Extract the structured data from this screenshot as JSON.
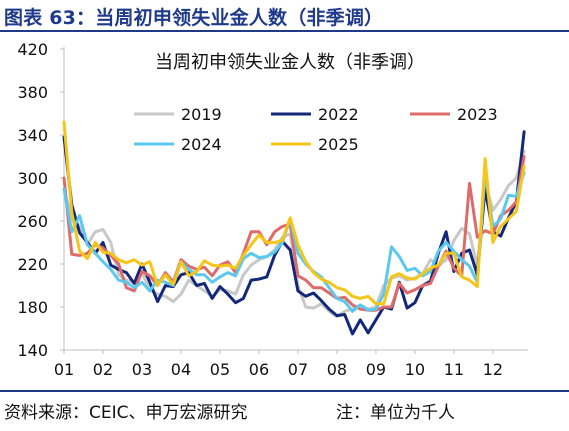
{
  "figure_title": "图表 63：当周初申领失业金人数（非季调）",
  "source_text": "资料来源：CEIC、申万宏源研究",
  "note_text": "注：单位为千人",
  "chart_data": {
    "type": "line",
    "title": "当周初申领失业金人数（非季调）",
    "xlabel": "",
    "ylabel": "",
    "ylim": [
      140,
      420
    ],
    "yticks": [
      140,
      180,
      220,
      260,
      300,
      340,
      380,
      420
    ],
    "xlim": [
      1,
      12.9
    ],
    "xticks": [
      "01",
      "02",
      "03",
      "04",
      "05",
      "06",
      "07",
      "08",
      "09",
      "10",
      "11",
      "12"
    ],
    "legend_position": "top-center",
    "grid": false,
    "series": [
      {
        "name": "2019",
        "color": "#c8c8c8",
        "x": [
          1.0,
          1.2,
          1.4,
          1.6,
          1.8,
          2.0,
          2.2,
          2.4,
          2.6,
          2.8,
          3.0,
          3.2,
          3.4,
          3.6,
          3.8,
          4.0,
          4.2,
          4.4,
          4.6,
          4.8,
          5.0,
          5.2,
          5.4,
          5.6,
          5.8,
          6.0,
          6.2,
          6.4,
          6.6,
          6.8,
          7.0,
          7.2,
          7.4,
          7.6,
          7.8,
          8.0,
          8.2,
          8.4,
          8.6,
          8.8,
          9.0,
          9.2,
          9.4,
          9.6,
          9.8,
          10.0,
          10.2,
          10.4,
          10.6,
          10.8,
          11.0,
          11.2,
          11.4,
          11.6,
          11.8,
          12.0,
          12.2,
          12.4,
          12.6,
          12.8
        ],
        "y": [
          290,
          262,
          255,
          238,
          250,
          252,
          240,
          210,
          205,
          203,
          212,
          196,
          192,
          190,
          185,
          192,
          205,
          200,
          195,
          190,
          196,
          195,
          192,
          210,
          219,
          224,
          227,
          233,
          245,
          248,
          200,
          180,
          179,
          183,
          176,
          171,
          176,
          178,
          182,
          178,
          180,
          200,
          207,
          209,
          205,
          207,
          211,
          224,
          218,
          224,
          242,
          253,
          248,
          218,
          296,
          270,
          280,
          293,
          300,
          325
        ]
      },
      {
        "name": "2022",
        "color": "#13287a",
        "x": [
          1.0,
          1.2,
          1.4,
          1.6,
          1.8,
          2.0,
          2.2,
          2.4,
          2.6,
          2.8,
          3.0,
          3.2,
          3.4,
          3.6,
          3.8,
          4.0,
          4.2,
          4.4,
          4.6,
          4.8,
          5.0,
          5.2,
          5.4,
          5.6,
          5.8,
          6.0,
          6.2,
          6.4,
          6.6,
          6.8,
          7.0,
          7.2,
          7.4,
          7.6,
          7.8,
          8.0,
          8.2,
          8.4,
          8.6,
          8.8,
          9.0,
          9.2,
          9.4,
          9.6,
          9.8,
          10.0,
          10.2,
          10.4,
          10.6,
          10.8,
          11.0,
          11.2,
          11.4,
          11.6,
          11.8,
          12.0,
          12.2,
          12.4,
          12.6,
          12.8
        ],
        "y": [
          338,
          275,
          249,
          240,
          230,
          240,
          219,
          215,
          212,
          202,
          220,
          203,
          185,
          200,
          199,
          210,
          212,
          200,
          202,
          188,
          199,
          192,
          184,
          188,
          205,
          206,
          208,
          228,
          241,
          233,
          195,
          190,
          193,
          186,
          178,
          172,
          173,
          155,
          168,
          156,
          168,
          180,
          178,
          203,
          179,
          184,
          200,
          204,
          230,
          250,
          213,
          230,
          233,
          210,
          290,
          250,
          246,
          263,
          278,
          343
        ]
      },
      {
        "name": "2023",
        "color": "#de6a6a",
        "x": [
          1.0,
          1.2,
          1.4,
          1.6,
          1.8,
          2.0,
          2.2,
          2.4,
          2.6,
          2.8,
          3.0,
          3.2,
          3.4,
          3.6,
          3.8,
          4.0,
          4.2,
          4.4,
          4.6,
          4.8,
          5.0,
          5.2,
          5.4,
          5.6,
          5.8,
          6.0,
          6.2,
          6.4,
          6.6,
          6.8,
          7.0,
          7.2,
          7.4,
          7.6,
          7.8,
          8.0,
          8.2,
          8.4,
          8.6,
          8.8,
          9.0,
          9.2,
          9.4,
          9.6,
          9.8,
          10.0,
          10.2,
          10.4,
          10.6,
          10.8,
          11.0,
          11.2,
          11.4,
          11.6,
          11.8,
          12.0,
          12.2,
          12.4,
          12.6,
          12.8
        ],
        "y": [
          300,
          229,
          228,
          230,
          238,
          235,
          228,
          220,
          198,
          195,
          213,
          209,
          200,
          212,
          203,
          224,
          218,
          215,
          217,
          209,
          219,
          222,
          212,
          230,
          250,
          250,
          238,
          250,
          255,
          257,
          209,
          205,
          198,
          198,
          193,
          188,
          189,
          182,
          178,
          177,
          177,
          180,
          180,
          202,
          193,
          196,
          200,
          202,
          218,
          232,
          216,
          209,
          295,
          245,
          251,
          248,
          265,
          270,
          278,
          320
        ]
      },
      {
        "name": "2024",
        "color": "#5bc8f0",
        "x": [
          1.0,
          1.2,
          1.4,
          1.6,
          1.8,
          2.0,
          2.2,
          2.4,
          2.6,
          2.8,
          3.0,
          3.2,
          3.4,
          3.6,
          3.8,
          4.0,
          4.2,
          4.4,
          4.6,
          4.8,
          5.0,
          5.2,
          5.4,
          5.6,
          5.8,
          6.0,
          6.2,
          6.4,
          6.6,
          6.8,
          7.0,
          7.2,
          7.4,
          7.6,
          7.8,
          8.0,
          8.2,
          8.4,
          8.6,
          8.8,
          9.0,
          9.2,
          9.4,
          9.6,
          9.8,
          10.0,
          10.2,
          10.4,
          10.6,
          10.8,
          11.0,
          11.2,
          11.4,
          11.6,
          11.8,
          12.0,
          12.2,
          12.4,
          12.6,
          12.8
        ],
        "y": [
          290,
          250,
          265,
          238,
          230,
          222,
          215,
          205,
          203,
          198,
          203,
          195,
          205,
          203,
          200,
          222,
          215,
          210,
          210,
          203,
          208,
          212,
          209,
          225,
          230,
          226,
          227,
          231,
          240,
          262,
          230,
          220,
          213,
          208,
          198,
          188,
          185,
          176,
          182,
          177,
          178,
          192,
          236,
          227,
          214,
          216,
          209,
          213,
          232,
          240,
          232,
          224,
          218,
          203,
          305,
          255,
          262,
          284,
          283,
          305
        ]
      },
      {
        "name": "2025",
        "color": "#f5c518",
        "x": [
          1.0,
          1.2,
          1.4,
          1.6,
          1.8,
          2.0,
          2.2,
          2.4,
          2.6,
          2.8,
          3.0,
          3.2,
          3.4,
          3.6,
          3.8,
          4.0,
          4.2,
          4.4,
          4.6,
          4.8,
          5.0,
          5.2,
          5.4,
          5.6,
          5.8,
          6.0,
          6.2,
          6.4,
          6.6,
          6.8,
          7.0,
          7.2,
          7.4,
          7.6,
          7.8,
          8.0,
          8.2,
          8.4,
          8.6,
          8.8,
          9.0,
          9.2,
          9.4,
          9.6,
          9.8,
          10.0,
          10.2,
          10.4,
          10.6,
          10.8,
          11.0,
          11.2,
          11.4,
          11.6,
          11.8,
          12.0,
          12.2,
          12.4,
          12.6,
          12.8
        ],
        "y": [
          352,
          268,
          232,
          225,
          240,
          231,
          230,
          224,
          221,
          224,
          219,
          222,
          200,
          210,
          201,
          222,
          209,
          213,
          223,
          219,
          218,
          219,
          216,
          228,
          238,
          247,
          240,
          240,
          242,
          263,
          238,
          222,
          212,
          206,
          203,
          198,
          196,
          190,
          188,
          190,
          183,
          183,
          208,
          211,
          207,
          206,
          211,
          216,
          219,
          230,
          230,
          208,
          205,
          199,
          318,
          240,
          255,
          262,
          269,
          311
        ]
      }
    ]
  }
}
